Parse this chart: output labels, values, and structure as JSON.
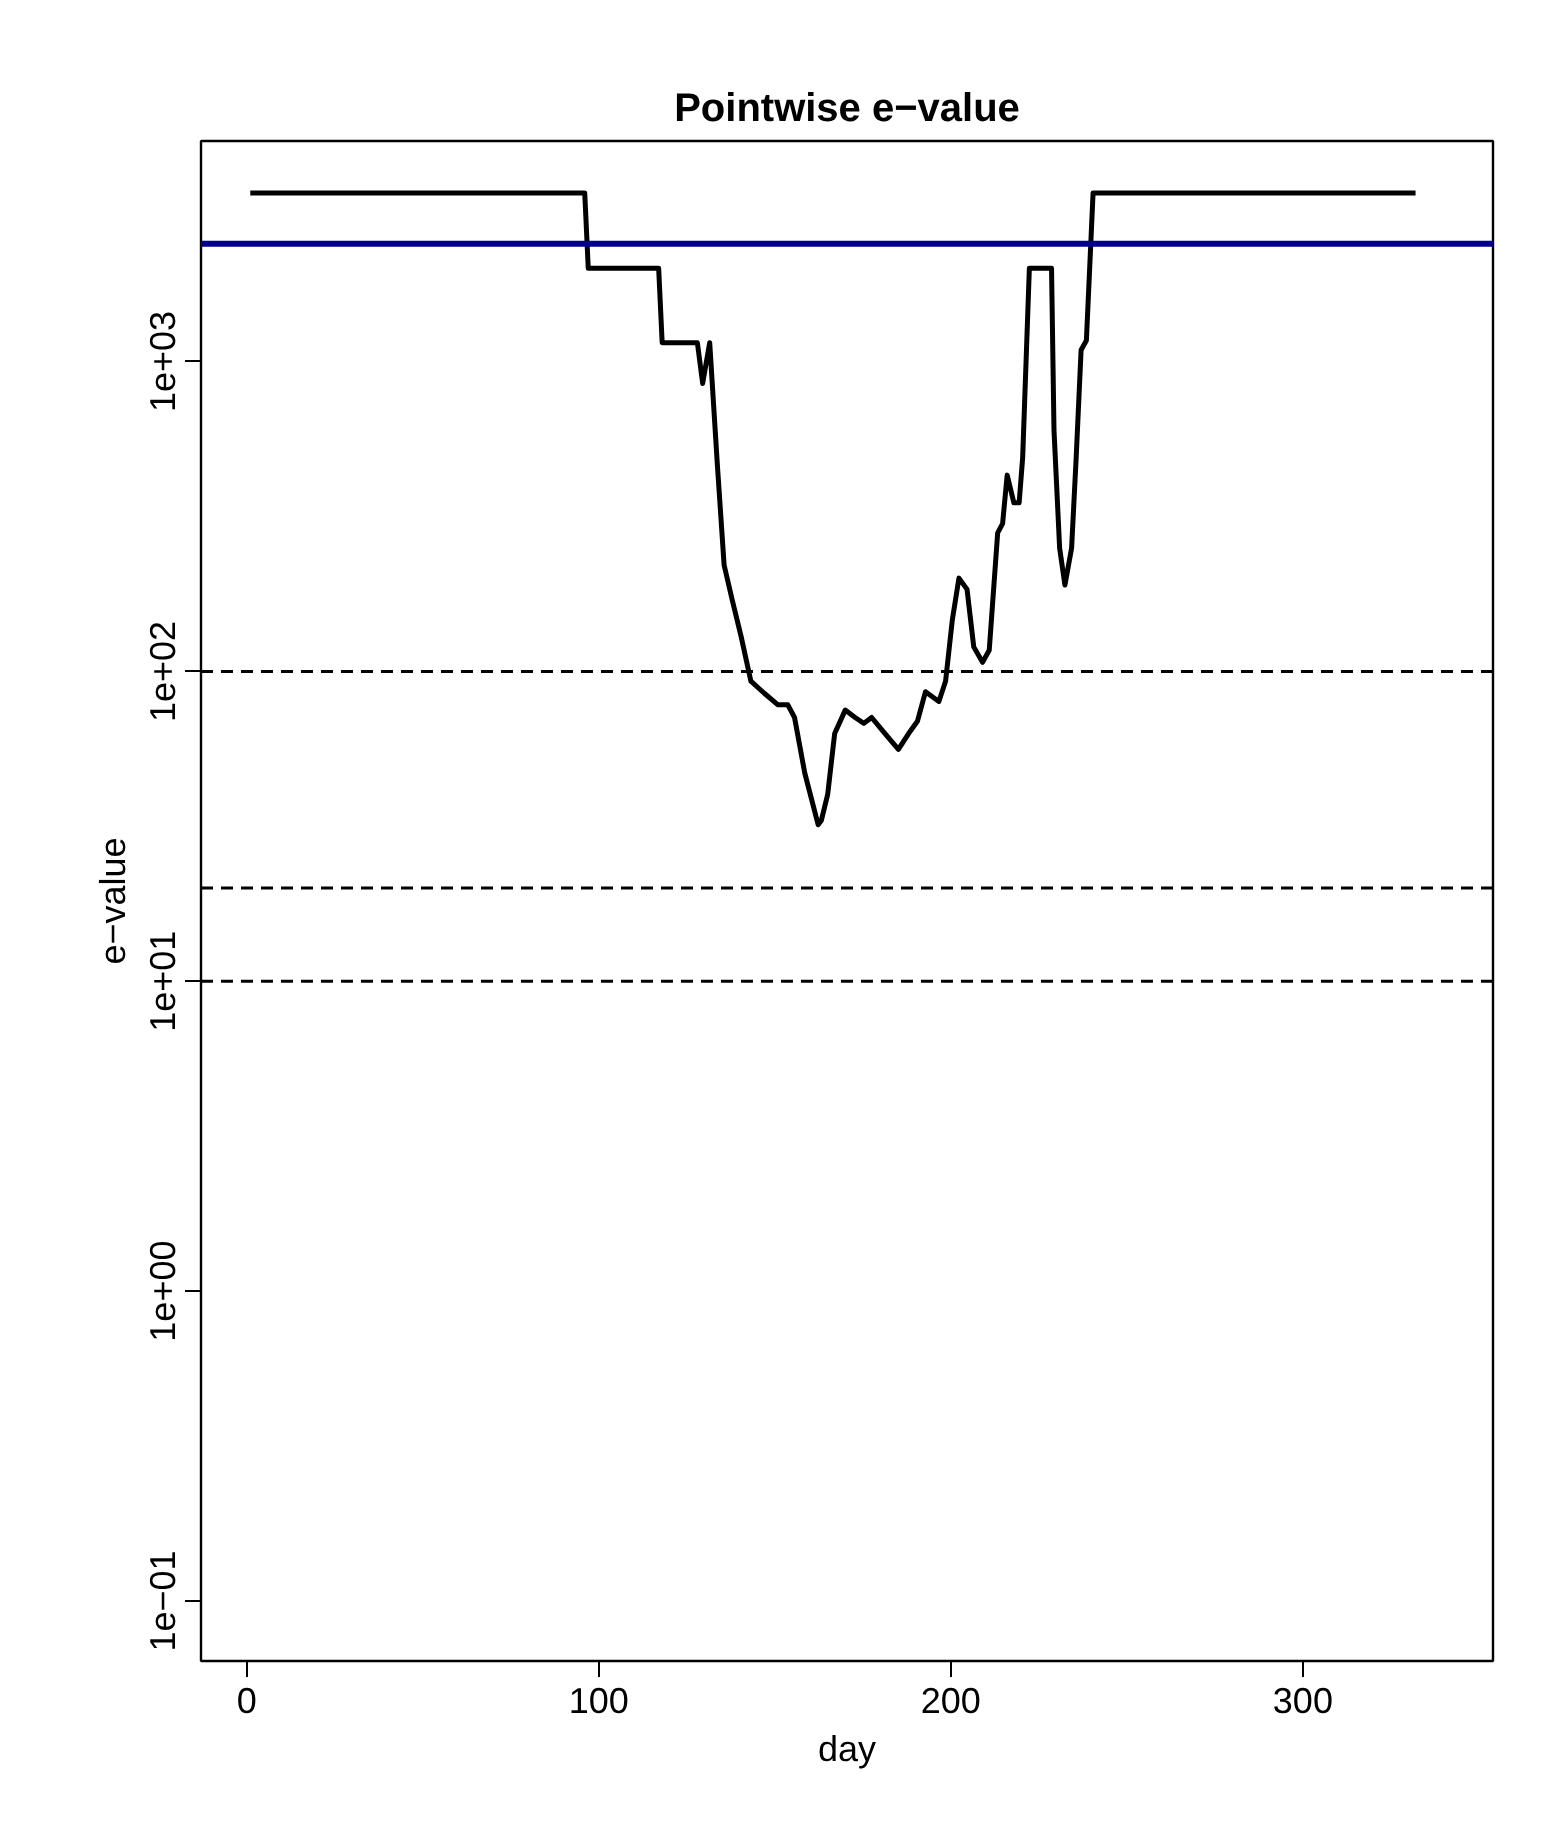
{
  "chart_data": {
    "type": "line",
    "title": "Pointwise e−value",
    "xlabel": "day",
    "ylabel": "e−value",
    "log": "y",
    "grid": false,
    "marker": "none",
    "line_style": "solid",
    "xlim": [
      -13,
      354
    ],
    "ylim": [
      0.064,
      5150
    ],
    "xticks": [
      0,
      100,
      200,
      300
    ],
    "yticks": [
      {
        "value": 0.1,
        "label": "1e−01"
      },
      {
        "value": 1,
        "label": "1e+00"
      },
      {
        "value": 10,
        "label": "1e+01"
      },
      {
        "value": 100,
        "label": "1e+02"
      },
      {
        "value": 1000,
        "label": "1e+03"
      }
    ],
    "ref_lines": [
      {
        "axis": "y",
        "value": 2400,
        "color": "#00008b",
        "line_style": "solid"
      },
      {
        "axis": "y",
        "value": 100,
        "color": "#000000",
        "line_style": "dashed"
      },
      {
        "axis": "y",
        "value": 20,
        "color": "#000000",
        "line_style": "dashed"
      },
      {
        "axis": "y",
        "value": 10,
        "color": "#000000",
        "line_style": "dashed"
      }
    ],
    "series": [
      {
        "color": "#000000",
        "x": [
          1,
          96,
          97,
          117,
          118,
          128,
          129.5,
          131.5,
          133.7,
          135.6,
          137.9,
          140.4,
          143.2,
          147,
          150.9,
          153.7,
          155.6,
          158.5,
          162.3,
          163.2,
          165,
          167,
          170,
          172.8,
          175.3,
          177.5,
          181.3,
          185.1,
          188,
          190.5,
          192.8,
          196.6,
          198.5,
          200.4,
          202.3,
          204.6,
          206.5,
          209,
          210.9,
          213.3,
          214.7,
          216,
          217.9,
          219.4,
          220.4,
          222.3,
          228.6,
          229.3,
          230.9,
          232.4,
          234.3,
          235.6,
          237,
          238.5,
          240.4,
          332
        ],
        "values": [
          3500,
          3500,
          2000,
          2000,
          1150,
          1150,
          850,
          1150,
          460,
          220,
          170,
          130,
          93,
          85,
          78,
          78,
          71,
          47,
          32,
          33,
          40,
          63,
          75,
          71,
          68,
          71,
          63,
          56,
          63,
          69,
          86,
          80,
          93,
          146,
          200,
          184,
          120,
          107,
          117,
          280,
          300,
          430,
          350,
          350,
          490,
          2000,
          2000,
          600,
          250,
          190,
          250,
          490,
          1090,
          1170,
          3500,
          3500
        ]
      }
    ]
  }
}
